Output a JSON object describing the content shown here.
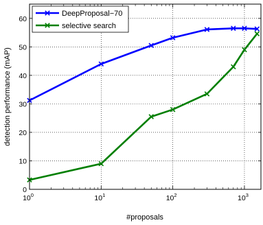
{
  "chart_data": {
    "type": "line",
    "title": "",
    "xlabel": "#proposals",
    "ylabel": "detection performance (mAP)",
    "xscale": "log",
    "xlim": [
      1,
      1700
    ],
    "ylim": [
      0,
      65
    ],
    "x_ticks": [
      {
        "base": "10",
        "exp": "0"
      },
      {
        "base": "10",
        "exp": "1"
      },
      {
        "base": "10",
        "exp": "2"
      },
      {
        "base": "10",
        "exp": "3"
      }
    ],
    "y_ticks": [
      "0",
      "10",
      "20",
      "30",
      "40",
      "50",
      "60"
    ],
    "grid": true,
    "legend_position": "top-left",
    "series": [
      {
        "name": "DeepProposal−70",
        "color": "#0000ff",
        "marker": "x",
        "x": [
          1,
          10,
          50,
          100,
          300,
          700,
          1000,
          1500
        ],
        "y": [
          31.2,
          44.0,
          50.5,
          53.2,
          56.1,
          56.5,
          56.5,
          56.3
        ]
      },
      {
        "name": "selective search",
        "color": "#007f00",
        "marker": "x",
        "x": [
          1,
          10,
          50,
          100,
          300,
          700,
          1000,
          1500
        ],
        "y": [
          3.3,
          9.0,
          25.5,
          28.0,
          33.5,
          43.0,
          49.0,
          54.6
        ]
      }
    ]
  }
}
